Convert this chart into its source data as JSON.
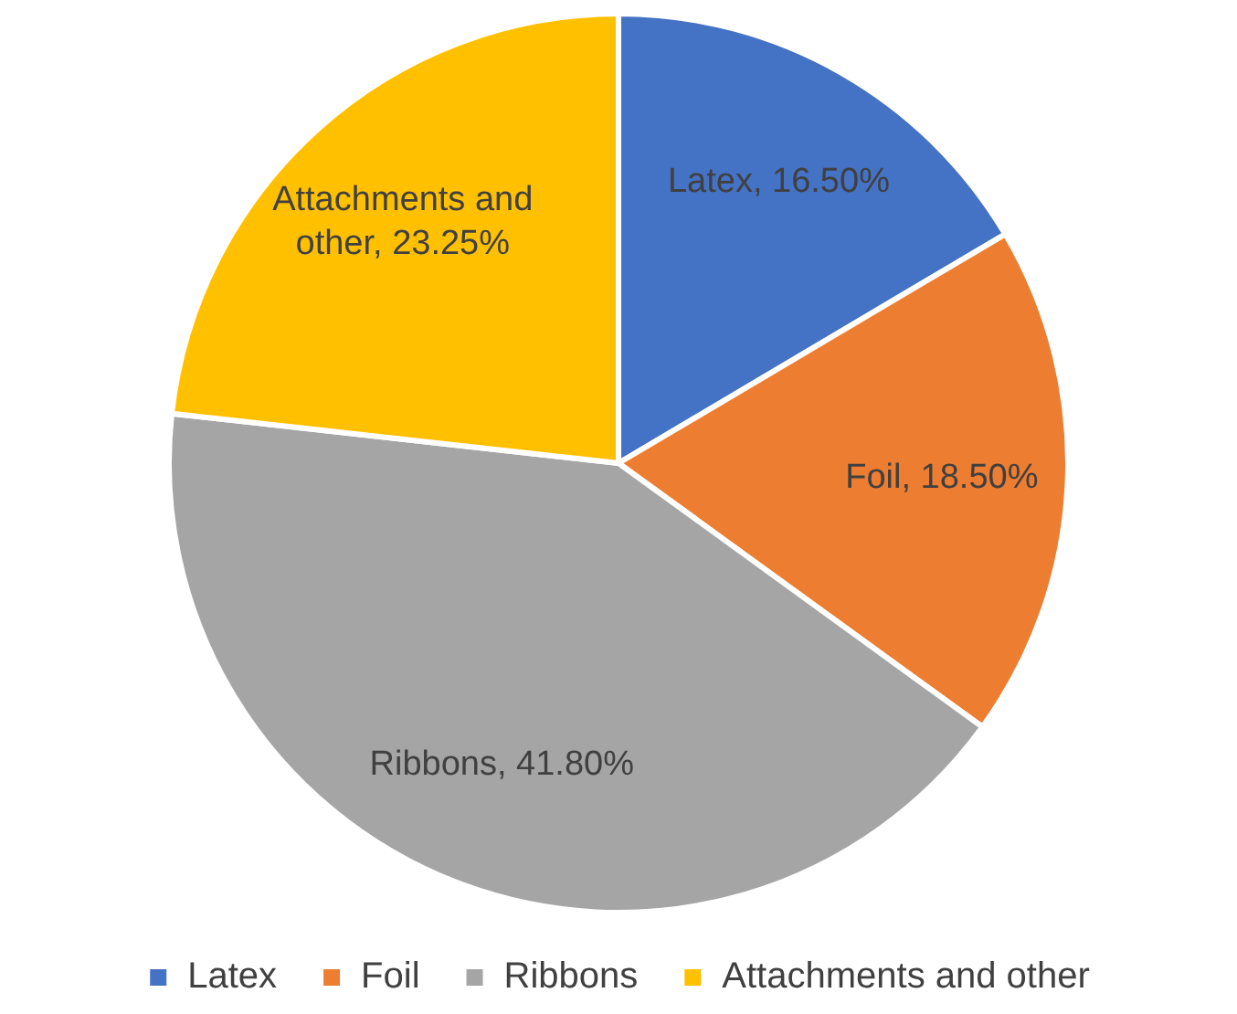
{
  "chart_data": {
    "type": "pie",
    "categories": [
      "Latex",
      "Foil",
      "Ribbons",
      "Attachments and other"
    ],
    "values": [
      16.5,
      18.5,
      41.8,
      23.25
    ],
    "colors": [
      "#4472c4",
      "#ed7d31",
      "#a5a5a5",
      "#ffc000"
    ],
    "value_labels": [
      "Latex, 16.50%",
      "Foil, 18.50%",
      "Ribbons, 41.80%",
      "Attachments and other, 23.25%"
    ],
    "legend": "bottom"
  }
}
